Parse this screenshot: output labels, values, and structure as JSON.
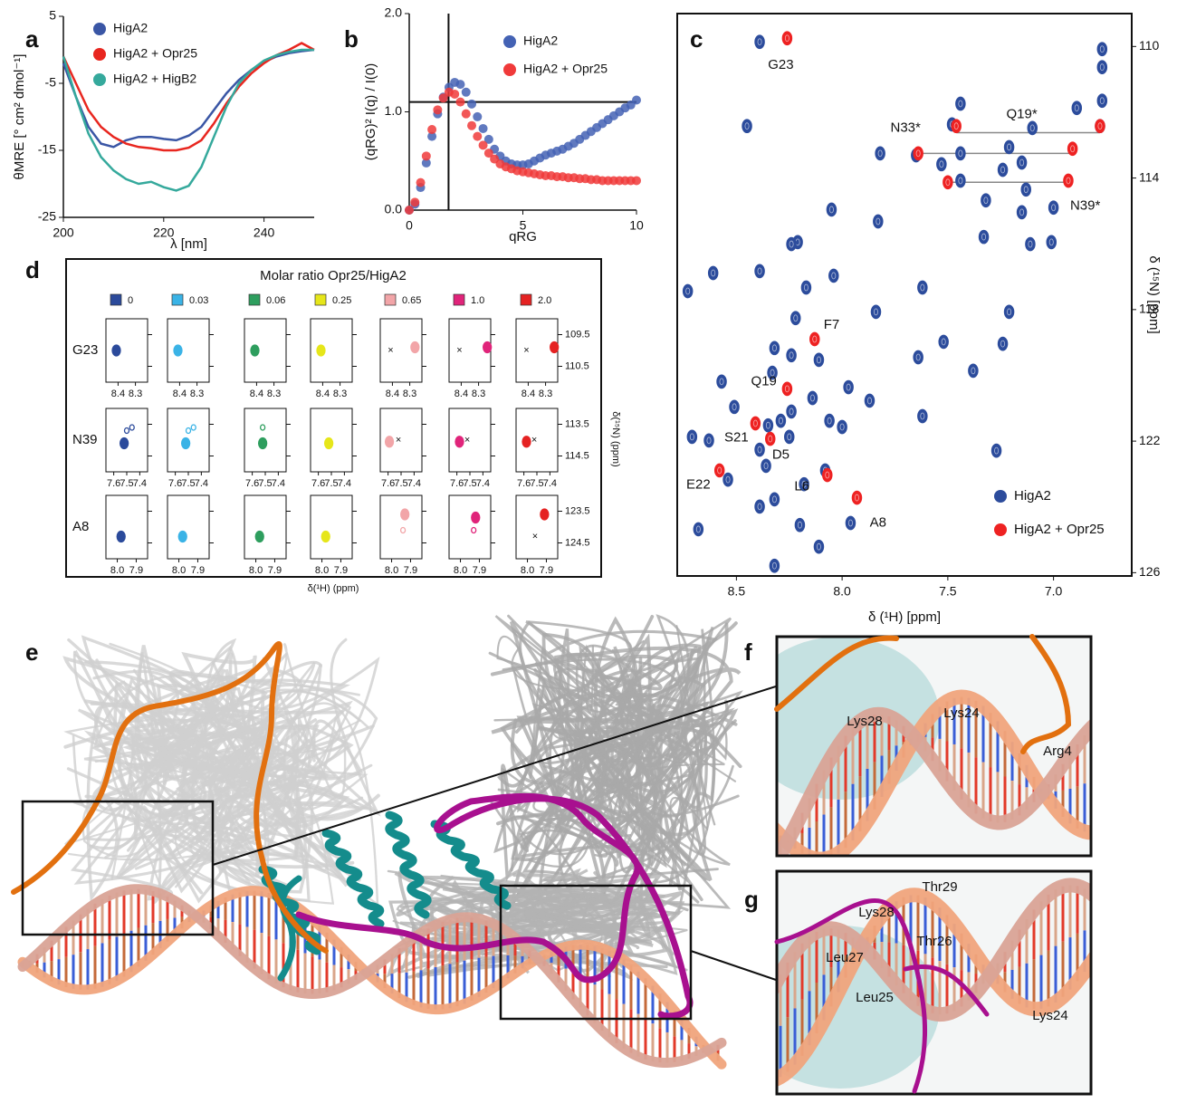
{
  "panel_labels": [
    "a",
    "b",
    "c",
    "d",
    "e",
    "f",
    "g"
  ],
  "chart_data": [
    {
      "type": "line",
      "xlabel": "λ [nm]",
      "ylabel": "θMRE [° cm² dmol⁻¹]",
      "xlim": [
        200,
        250
      ],
      "ylim": [
        -25,
        5
      ],
      "xticks": [
        200,
        220,
        240
      ],
      "yticks": [
        5,
        -5,
        -15,
        -25
      ],
      "legend": "upper left",
      "x": [
        200,
        202.5,
        205,
        207.5,
        210,
        212.5,
        215,
        217.5,
        220,
        222.5,
        225,
        227.5,
        230,
        232.5,
        235,
        237.5,
        240,
        242.5,
        245,
        247.5,
        250
      ],
      "series": [
        {
          "name": "HigA2",
          "color": "#3a56a5",
          "values": [
            -2,
            -7,
            -11.5,
            -14,
            -14.5,
            -13.5,
            -13,
            -13,
            -13.3,
            -13.5,
            -12.8,
            -11.5,
            -9,
            -6.5,
            -4.5,
            -3,
            -1.8,
            -1,
            -0.5,
            -0.2,
            0
          ]
        },
        {
          "name": "HigA2 + Opr25",
          "color": "#e8261f",
          "values": [
            -1,
            -5,
            -9,
            -11.5,
            -13,
            -14,
            -14.5,
            -14.7,
            -15,
            -15,
            -14.6,
            -13.5,
            -11,
            -8,
            -5.5,
            -3.5,
            -2,
            -0.8,
            0,
            1,
            0
          ]
        },
        {
          "name": "HigA2 + HigB2",
          "color": "#35a99c",
          "values": [
            -1,
            -7,
            -12.5,
            -16,
            -18,
            -19.3,
            -20,
            -19.7,
            -20.5,
            -21,
            -20.3,
            -17.5,
            -13,
            -8.5,
            -5,
            -3,
            -1.6,
            -0.8,
            -0.3,
            0,
            0
          ]
        }
      ]
    },
    {
      "type": "scatter",
      "xlabel": "qRG",
      "ylabel": "(qRG)² I(q) / I(0)",
      "xlim": [
        0,
        10
      ],
      "ylim": [
        0,
        2
      ],
      "xticks": [
        0,
        5,
        10
      ],
      "yticks": [
        {
          "value": 0,
          "label": "0.0"
        },
        {
          "value": 1,
          "label": "1.0"
        },
        {
          "value": 2,
          "label": "2.0"
        }
      ],
      "guides": {
        "x": 1.73,
        "y": 1.1
      },
      "legend": "upper right",
      "x": [
        0,
        0.25,
        0.5,
        0.75,
        1,
        1.25,
        1.5,
        1.75,
        2,
        2.25,
        2.5,
        2.75,
        3,
        3.25,
        3.5,
        3.75,
        4,
        4.25,
        4.5,
        4.75,
        5,
        5.25,
        5.5,
        5.75,
        6,
        6.25,
        6.5,
        6.75,
        7,
        7.25,
        7.5,
        7.75,
        8,
        8.25,
        8.5,
        8.75,
        9,
        9.25,
        9.5,
        9.75,
        10
      ],
      "series": [
        {
          "name": "HigA2",
          "color": "#4462b4",
          "values": [
            0,
            0.06,
            0.23,
            0.48,
            0.75,
            0.98,
            1.15,
            1.25,
            1.3,
            1.28,
            1.2,
            1.08,
            0.95,
            0.83,
            0.72,
            0.62,
            0.55,
            0.5,
            0.47,
            0.46,
            0.46,
            0.47,
            0.5,
            0.53,
            0.56,
            0.58,
            0.6,
            0.62,
            0.65,
            0.68,
            0.72,
            0.76,
            0.8,
            0.84,
            0.88,
            0.92,
            0.96,
            1.0,
            1.04,
            1.07,
            1.12
          ]
        },
        {
          "name": "HigA2 + Opr25",
          "color": "#f03a3a",
          "values": [
            0,
            0.08,
            0.28,
            0.55,
            0.82,
            1.02,
            1.14,
            1.2,
            1.18,
            1.1,
            0.98,
            0.86,
            0.75,
            0.66,
            0.58,
            0.52,
            0.47,
            0.44,
            0.42,
            0.4,
            0.39,
            0.38,
            0.37,
            0.36,
            0.35,
            0.35,
            0.34,
            0.34,
            0.33,
            0.33,
            0.32,
            0.32,
            0.31,
            0.31,
            0.3,
            0.3,
            0.3,
            0.3,
            0.3,
            0.3,
            0.3
          ]
        }
      ]
    },
    {
      "type": "scatter",
      "xlabel": "δ (¹H) [ppm]",
      "ylabel": "δ (¹⁵N) [ppm]",
      "xlim": [
        8.78,
        6.63
      ],
      "ylim": [
        126.1,
        109
      ],
      "xticks": [
        8.5,
        {
          "value": 8,
          "label": "8.0"
        },
        7.5,
        {
          "value": 7,
          "label": "7.0"
        }
      ],
      "yticks": [
        110,
        114,
        118,
        122,
        126
      ],
      "legend": "lower right",
      "series": [
        {
          "name": "HigA2",
          "color": "#2c4c9c",
          "x": [
            8.39,
            8.45,
            7.82,
            7.48,
            7.44,
            7.24,
            7.13,
            7.15,
            7.0,
            7.01,
            7.11,
            7.33,
            8.05,
            7.83,
            8.21,
            8.24,
            8.61,
            8.73,
            8.39,
            8.17,
            8.04,
            7.84,
            7.62,
            7.52,
            7.38,
            7.24,
            7.21,
            7.64,
            8.22,
            8.32,
            8.11,
            8.24,
            8.33,
            8.57,
            7.97,
            7.87,
            8.14,
            8.24,
            8.29,
            8.51,
            8.63,
            8.71,
            8.35,
            8.25,
            8.06,
            8.0,
            7.62,
            7.27,
            8.39,
            8.36,
            8.08,
            8.18,
            8.32,
            8.39,
            8.2,
            7.96,
            8.54,
            8.68,
            8.11,
            8.32,
            6.77,
            6.77,
            6.77,
            6.89,
            7.1,
            7.15,
            7.53,
            7.44,
            7.65,
            7.44,
            7.21,
            7.32,
            6.78
          ],
          "values": [
            109.86,
            112.42,
            113.25,
            112.37,
            113.25,
            113.75,
            114.35,
            115.04,
            114.9,
            115.95,
            116.01,
            115.79,
            114.96,
            115.32,
            115.95,
            116.01,
            116.89,
            117.44,
            116.83,
            117.33,
            116.97,
            118.07,
            117.33,
            118.98,
            119.86,
            119.04,
            118.07,
            119.45,
            118.26,
            119.17,
            119.53,
            119.39,
            119.92,
            120.19,
            120.36,
            120.77,
            120.69,
            121.1,
            121.38,
            120.96,
            121.98,
            121.87,
            121.52,
            121.87,
            121.38,
            121.57,
            121.24,
            122.29,
            122.26,
            122.75,
            122.89,
            123.31,
            123.77,
            123.99,
            124.55,
            124.49,
            123.17,
            124.68,
            125.21,
            125.79,
            110.63,
            110.08,
            111.65,
            111.87,
            112.48,
            113.53,
            113.58,
            111.74,
            113.31,
            114.08,
            113.06,
            114.68,
            112.42
          ]
        },
        {
          "name": "HigA2 + Opr25",
          "color": "#ee2222",
          "x": [
            8.26,
            7.46,
            7.64,
            6.91,
            6.78,
            7.5,
            6.93,
            8.13,
            8.26,
            8.41,
            8.34,
            8.58,
            8.07,
            7.93
          ],
          "values": [
            109.75,
            112.42,
            113.25,
            113.11,
            112.42,
            114.13,
            114.08,
            118.9,
            120.41,
            121.46,
            121.93,
            122.89,
            123.03,
            123.72
          ]
        }
      ],
      "connectors": [
        {
          "x": [
            7.46,
            6.78
          ],
          "y": 112.62
        },
        {
          "x": [
            7.64,
            6.91
          ],
          "y": 113.25
        },
        {
          "x": [
            7.5,
            6.93
          ],
          "y": 114.13
        }
      ],
      "annotations": [
        {
          "text": "G23",
          "x": 8.29,
          "y": 110.57
        },
        {
          "text": "N33*",
          "x": 7.7,
          "y": 112.48
        },
        {
          "text": "Q19*",
          "x": 7.15,
          "y": 112.07
        },
        {
          "text": "N39*",
          "x": 6.85,
          "y": 114.85
        },
        {
          "text": "F7",
          "x": 8.05,
          "y": 118.48
        },
        {
          "text": "Q19",
          "x": 8.37,
          "y": 120.19
        },
        {
          "text": "S21",
          "x": 8.5,
          "y": 121.9
        },
        {
          "text": "D5",
          "x": 8.29,
          "y": 122.42
        },
        {
          "text": "L6",
          "x": 8.19,
          "y": 123.39
        },
        {
          "text": "E22",
          "x": 8.68,
          "y": 123.33
        },
        {
          "text": "A8",
          "x": 7.83,
          "y": 124.49
        }
      ]
    }
  ],
  "titration": {
    "title": "Molar ratio Opr25/HigA2",
    "xlabel": "δ(¹H) (ppm)",
    "ylabel": "δ(¹⁵N) (ppm)",
    "ratios": [
      {
        "label": "0",
        "color": "#2b4a9b"
      },
      {
        "label": "0.03",
        "color": "#3ab3e6"
      },
      {
        "label": "0.06",
        "color": "#2e9e5e"
      },
      {
        "label": "0.25",
        "color": "#e6e61a"
      },
      {
        "label": "0.65",
        "color": "#f2a5a8"
      },
      {
        "label": "1.0",
        "color": "#e0247a"
      },
      {
        "label": "2.0",
        "color": "#e52222"
      }
    ],
    "rows": [
      {
        "label": "G23",
        "xlim": [
          8.47,
          8.23
        ],
        "ylim": [
          111,
          109
        ],
        "xticks": [
          8.4,
          8.3
        ],
        "yticks": [
          109.5,
          110.5
        ],
        "cells": [
          {
            "peaks": [
              [
                8.41,
                110
              ]
            ]
          },
          {
            "peaks": [
              [
                8.41,
                110
              ]
            ]
          },
          {
            "peaks": [
              [
                8.41,
                110
              ]
            ]
          },
          {
            "peaks": [
              [
                8.41,
                110
              ]
            ]
          },
          {
            "peaks": [
              [
                8.27,
                109.9
              ]
            ],
            "cross": [
              8.41,
              110
            ]
          },
          {
            "peaks": [
              [
                8.25,
                109.9
              ]
            ],
            "cross": [
              8.41,
              110
            ]
          },
          {
            "peaks": [
              [
                8.25,
                109.9
              ]
            ],
            "cross": [
              8.41,
              110
            ]
          }
        ]
      },
      {
        "label": "N39",
        "xlim": [
          7.66,
          7.34
        ],
        "ylim": [
          115,
          113
        ],
        "xticks": [
          7.6,
          7.5,
          7.4
        ],
        "yticks": [
          113.5,
          114.5
        ],
        "cells": [
          {
            "peaks": [
              [
                7.52,
                114.1
              ],
              [
                7.5,
                113.7
              ],
              [
                7.46,
                113.6
              ]
            ]
          },
          {
            "peaks": [
              [
                7.52,
                114.1
              ],
              [
                7.5,
                113.7
              ],
              [
                7.46,
                113.6
              ]
            ]
          },
          {
            "peaks": [
              [
                7.52,
                114.1
              ],
              [
                7.52,
                113.6
              ]
            ]
          },
          {
            "peaks": [
              [
                7.52,
                114.1
              ]
            ]
          },
          {
            "peaks": [
              [
                7.59,
                114.05
              ]
            ],
            "cross": [
              7.52,
              114
            ]
          },
          {
            "peaks": [
              [
                7.58,
                114.05
              ]
            ],
            "cross": [
              7.52,
              114
            ]
          },
          {
            "peaks": [
              [
                7.58,
                114.05
              ]
            ],
            "cross": [
              7.52,
              114
            ]
          }
        ]
      },
      {
        "label": "A8",
        "xlim": [
          8.06,
          7.84
        ],
        "ylim": [
          125,
          123
        ],
        "xticks": [
          {
            "value": 8,
            "label": "8.0"
          },
          7.9
        ],
        "yticks": [
          123.5,
          124.5
        ],
        "cells": [
          {
            "peaks": [
              [
                7.98,
                124.3
              ]
            ]
          },
          {
            "peaks": [
              [
                7.98,
                124.3
              ]
            ]
          },
          {
            "peaks": [
              [
                7.98,
                124.3
              ]
            ]
          },
          {
            "peaks": [
              [
                7.98,
                124.3
              ]
            ]
          },
          {
            "peaks": [
              [
                7.93,
                123.6
              ],
              [
                7.94,
                124.1
              ]
            ]
          },
          {
            "peaks": [
              [
                7.92,
                123.7
              ],
              [
                7.93,
                124.1
              ]
            ]
          },
          {
            "peaks": [
              [
                7.91,
                123.6
              ]
            ],
            "cross": [
              7.96,
              124.3
            ]
          }
        ]
      }
    ]
  },
  "structure": {
    "inset_f": [
      "Lys28",
      "Lys24",
      "Arg4"
    ],
    "inset_g": [
      "Thr29",
      "Lys28",
      "Thr26",
      "Leu27",
      "Leu25",
      "Lys24"
    ]
  }
}
